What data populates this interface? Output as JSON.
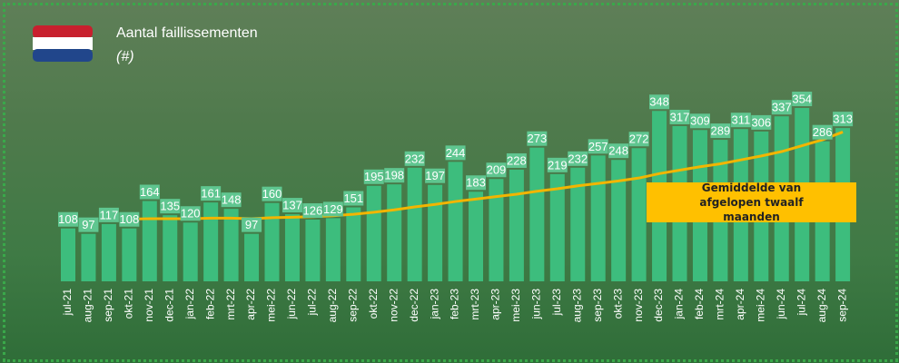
{
  "chart_data": {
    "type": "bar",
    "title": "Aantal faillissementen",
    "subtitle": "(#)",
    "categories": [
      "jul-21",
      "aug-21",
      "sep-21",
      "okt-21",
      "nov-21",
      "dec-21",
      "jan-22",
      "feb-22",
      "mrt-22",
      "apr-22",
      "mei-22",
      "jun-22",
      "jul-22",
      "aug-22",
      "sep-22",
      "okt-22",
      "nov-22",
      "dec-22",
      "jan-23",
      "feb-23",
      "mrt-23",
      "apr-23",
      "mei-23",
      "jun-23",
      "jul-23",
      "aug-23",
      "sep-23",
      "okt-23",
      "nov-23",
      "dec-23",
      "jan-24",
      "feb-24",
      "mrt-24",
      "apr-24",
      "mei-24",
      "jun-24",
      "jul-24",
      "aug-24",
      "sep-24"
    ],
    "values": [
      108,
      97,
      117,
      108,
      164,
      135,
      120,
      161,
      148,
      97,
      160,
      137,
      126,
      129,
      151,
      195,
      198,
      232,
      197,
      244,
      183,
      209,
      228,
      273,
      219,
      232,
      257,
      248,
      272,
      348,
      317,
      309,
      289,
      311,
      306,
      337,
      354,
      286,
      313
    ],
    "color": "#3dbd7d",
    "label_color": "#5fc690",
    "trend": {
      "label": "Gemiddelde van afgelopen twaalf maanden",
      "color": "#f2b500",
      "values": [
        null,
        null,
        null,
        127,
        128,
        128,
        128,
        129,
        129,
        128,
        130,
        131,
        132,
        134,
        137,
        141,
        146,
        152,
        157,
        163,
        168,
        173,
        178,
        184,
        189,
        195,
        200,
        205,
        211,
        220,
        227,
        234,
        240,
        248,
        256,
        265,
        277,
        289,
        305
      ]
    }
  }
}
